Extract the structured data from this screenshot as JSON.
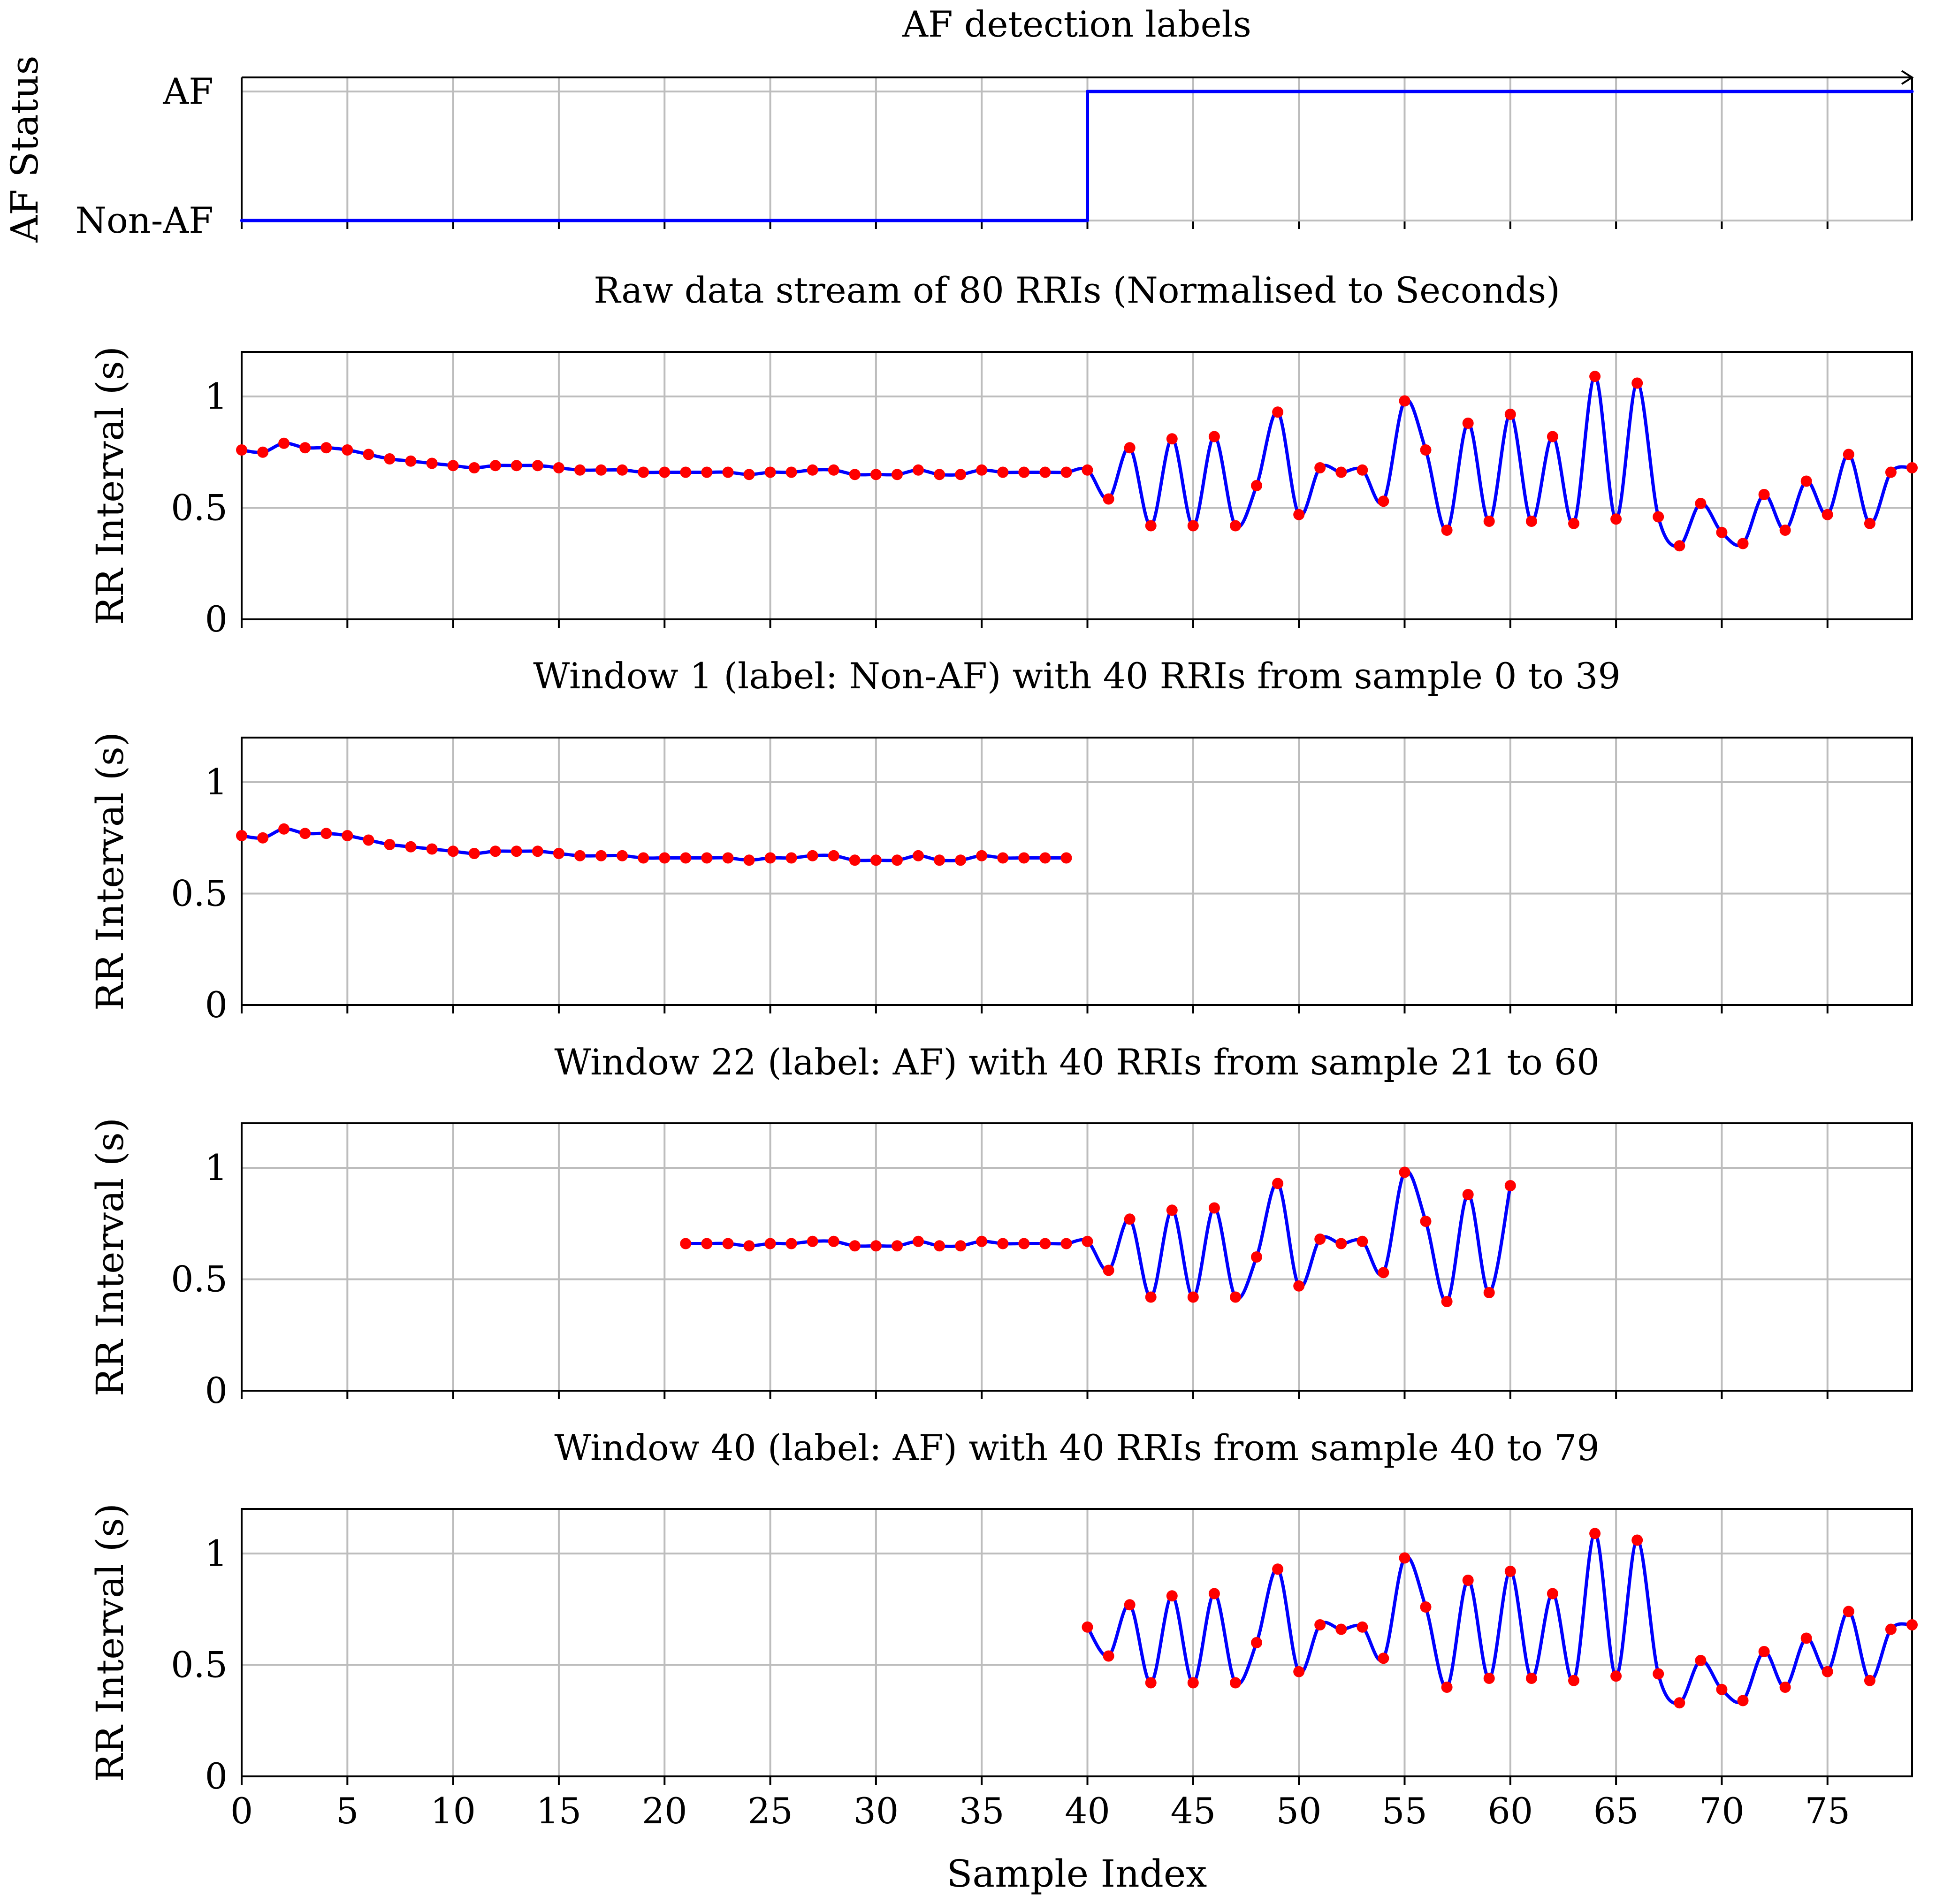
{
  "chart_data": [
    {
      "id": "af-labels",
      "type": "line",
      "title": "AF detection labels",
      "ylabel": "AF Status",
      "xlabel": "",
      "xlim": [
        0,
        79
      ],
      "step": true,
      "y_categories": [
        "Non-AF",
        "AF"
      ],
      "series": [
        {
          "name": "AF status",
          "x": [
            0,
            40,
            40,
            79
          ],
          "y": [
            0,
            0,
            1,
            1
          ]
        }
      ]
    },
    {
      "id": "raw",
      "type": "line",
      "title": "Raw data stream of 80 RRIs (Normalised to Seconds)",
      "ylabel": "RR Interval (s)",
      "xlabel": "",
      "xlim": [
        0,
        79
      ],
      "ylim": [
        0,
        1.2
      ],
      "yticks": [
        0,
        0.5,
        1
      ],
      "ytick_labels": [
        "0",
        "0.5",
        "1"
      ],
      "window": [
        0,
        79
      ]
    },
    {
      "id": "w1",
      "type": "line",
      "title": "Window 1 (label: Non-AF) with 40 RRIs from sample 0 to 39",
      "ylabel": "RR Interval (s)",
      "xlabel": "",
      "xlim": [
        0,
        79
      ],
      "ylim": [
        0,
        1.2
      ],
      "yticks": [
        0,
        0.5,
        1
      ],
      "ytick_labels": [
        "0",
        "0.5",
        "1"
      ],
      "window": [
        0,
        39
      ]
    },
    {
      "id": "w22",
      "type": "line",
      "title": "Window 22 (label: AF) with 40 RRIs from sample 21 to 60",
      "ylabel": "RR Interval (s)",
      "xlabel": "",
      "xlim": [
        0,
        79
      ],
      "ylim": [
        0,
        1.2
      ],
      "yticks": [
        0,
        0.5,
        1
      ],
      "ytick_labels": [
        "0",
        "0.5",
        "1"
      ],
      "window": [
        21,
        60
      ]
    },
    {
      "id": "w40",
      "type": "line",
      "title": "Window 40 (label: AF) with 40 RRIs from sample 40 to 79",
      "ylabel": "RR Interval (s)",
      "xlabel": "Sample Index",
      "xlim": [
        0,
        79
      ],
      "ylim": [
        0,
        1.2
      ],
      "yticks": [
        0,
        0.5,
        1
      ],
      "ytick_labels": [
        "0",
        "0.5",
        "1"
      ],
      "window": [
        40,
        79
      ],
      "xticks": [
        0,
        5,
        10,
        15,
        20,
        25,
        30,
        35,
        40,
        45,
        50,
        55,
        60,
        65,
        70,
        75
      ],
      "xtick_labels": [
        "0",
        "5",
        "10",
        "15",
        "20",
        "25",
        "30",
        "35",
        "40",
        "45",
        "50",
        "55",
        "60",
        "65",
        "70",
        "75"
      ]
    }
  ],
  "rri_series": {
    "name": "RR intervals (s)",
    "x": [
      0,
      1,
      2,
      3,
      4,
      5,
      6,
      7,
      8,
      9,
      10,
      11,
      12,
      13,
      14,
      15,
      16,
      17,
      18,
      19,
      20,
      21,
      22,
      23,
      24,
      25,
      26,
      27,
      28,
      29,
      30,
      31,
      32,
      33,
      34,
      35,
      36,
      37,
      38,
      39,
      40,
      41,
      42,
      43,
      44,
      45,
      46,
      47,
      48,
      49,
      50,
      51,
      52,
      53,
      54,
      55,
      56,
      57,
      58,
      59,
      60,
      61,
      62,
      63,
      64,
      65,
      66,
      67,
      68,
      69,
      70,
      71,
      72,
      73,
      74,
      75,
      76,
      77,
      78,
      79
    ],
    "y": [
      0.76,
      0.75,
      0.79,
      0.77,
      0.77,
      0.76,
      0.74,
      0.72,
      0.71,
      0.7,
      0.69,
      0.68,
      0.69,
      0.69,
      0.69,
      0.68,
      0.67,
      0.67,
      0.67,
      0.66,
      0.66,
      0.66,
      0.66,
      0.66,
      0.65,
      0.66,
      0.66,
      0.67,
      0.67,
      0.65,
      0.65,
      0.65,
      0.67,
      0.65,
      0.65,
      0.67,
      0.66,
      0.66,
      0.66,
      0.66,
      0.67,
      0.54,
      0.77,
      0.42,
      0.81,
      0.42,
      0.82,
      0.42,
      0.6,
      0.93,
      0.47,
      0.68,
      0.66,
      0.67,
      0.53,
      0.98,
      0.76,
      0.4,
      0.88,
      0.44,
      0.92,
      0.44,
      0.82,
      0.43,
      1.09,
      0.45,
      1.06,
      0.46,
      0.33,
      0.52,
      0.39,
      0.34,
      0.56,
      0.4,
      0.62,
      0.47,
      0.74,
      0.43,
      0.66,
      0.68
    ]
  },
  "colors": {
    "line": "#0000ff",
    "marker": "#ff0000",
    "grid": "#bdbdbd"
  }
}
